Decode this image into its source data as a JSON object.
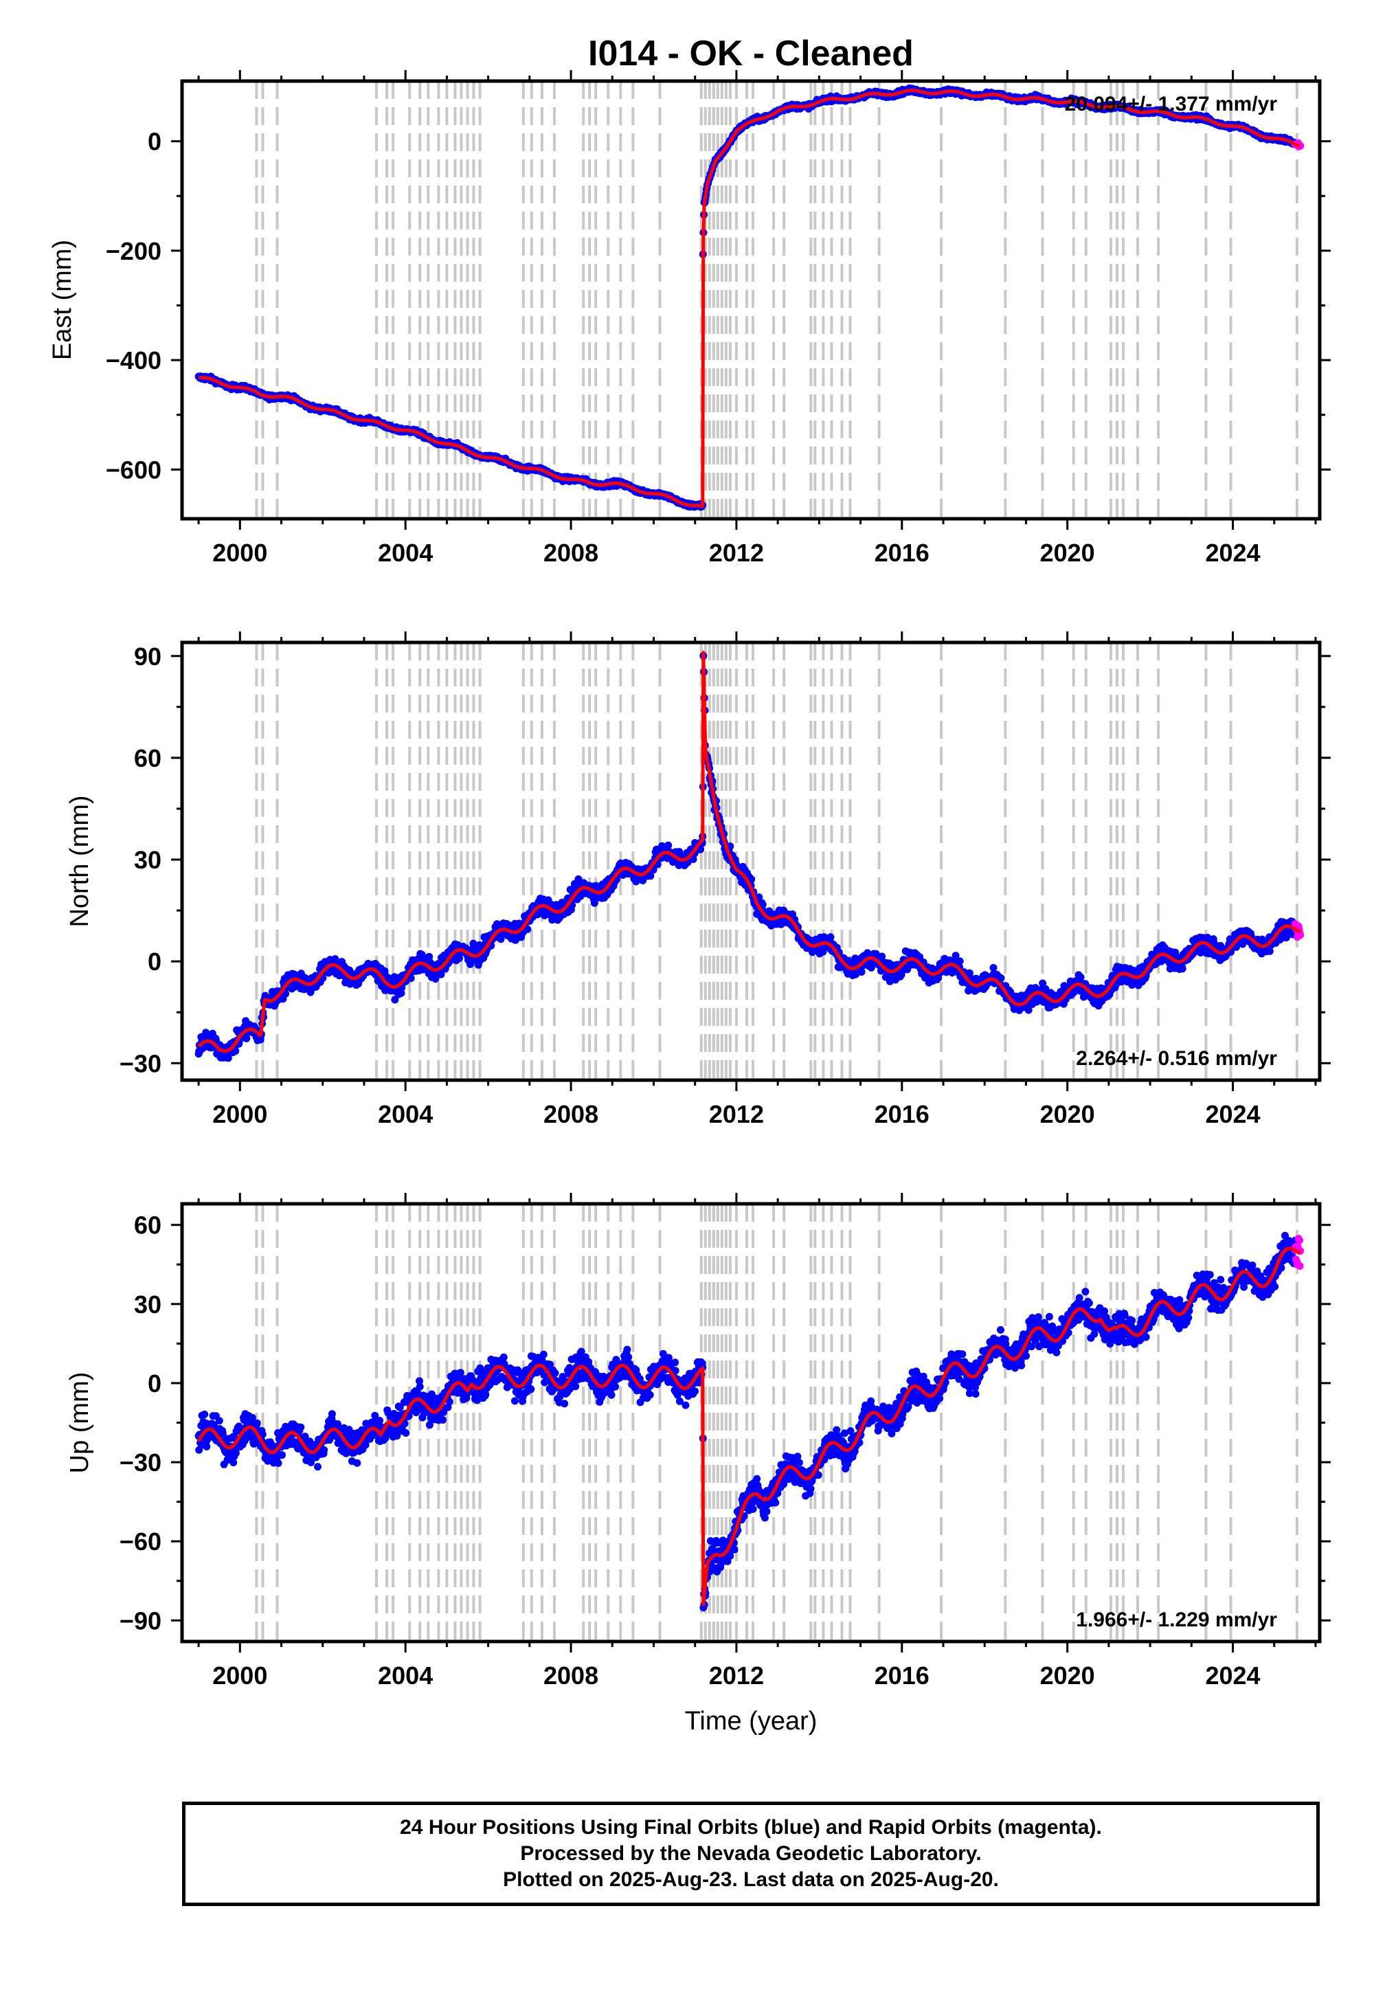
{
  "title": "I014  - OK - Cleaned",
  "caption": {
    "line1": "24 Hour Positions Using Final Orbits (blue) and Rapid Orbits (magenta).",
    "line2": "Processed by the Nevada Geodetic Laboratory.",
    "line3": "Plotted on 2025-Aug-23. Last data on 2025-Aug-20."
  },
  "colors": {
    "final": "#0000ff",
    "rapid": "#ff00ff",
    "model": "#ff0000",
    "steps": "#c8c8c8"
  },
  "chart_data": [
    {
      "type": "scatter",
      "component": "East",
      "ylabel": "East (mm)",
      "xlabel": "",
      "rate_label": "20.094+/- 1.377 mm/yr",
      "xlim": [
        1998.6,
        2026.1
      ],
      "ylim": [
        -690,
        110
      ],
      "yticks": [
        0,
        -200,
        -400,
        -600
      ],
      "xticks": [
        2000,
        2004,
        2008,
        2012,
        2016,
        2020,
        2024
      ],
      "model_knots": [
        [
          1999.0,
          -432
        ],
        [
          2000.0,
          -450
        ],
        [
          2000.5,
          -463
        ],
        [
          2001.0,
          -466
        ],
        [
          2002.0,
          -490
        ],
        [
          2003.0,
          -510
        ],
        [
          2004.0,
          -528
        ],
        [
          2005.0,
          -553
        ],
        [
          2006.0,
          -578
        ],
        [
          2007.0,
          -598
        ],
        [
          2008.0,
          -618
        ],
        [
          2008.5,
          -626
        ],
        [
          2009.0,
          -625
        ],
        [
          2010.0,
          -644
        ],
        [
          2011.19,
          -670
        ],
        [
          2011.19,
          -215
        ],
        [
          2011.22,
          -120
        ],
        [
          2011.3,
          -80
        ],
        [
          2011.5,
          -35
        ],
        [
          2012.0,
          18
        ],
        [
          2012.5,
          40
        ],
        [
          2013.0,
          55
        ],
        [
          2014.0,
          72
        ],
        [
          2015.0,
          82
        ],
        [
          2016.0,
          90
        ],
        [
          2017.0,
          90
        ],
        [
          2018.0,
          84
        ],
        [
          2019.0,
          78
        ],
        [
          2020.0,
          72
        ],
        [
          2021.0,
          63
        ],
        [
          2022.0,
          54
        ],
        [
          2023.0,
          44
        ],
        [
          2024.0,
          28
        ],
        [
          2025.0,
          5
        ],
        [
          2025.6,
          -7
        ]
      ],
      "noise_mm": 4,
      "seasonal_mm": 3
    },
    {
      "type": "scatter",
      "component": "North",
      "ylabel": "North (mm)",
      "xlabel": "",
      "rate_label": "2.264+/- 0.516 mm/yr",
      "xlim": [
        1998.6,
        2026.1
      ],
      "ylim": [
        -35,
        94
      ],
      "yticks": [
        90,
        60,
        30,
        0,
        -30
      ],
      "xticks": [
        2000,
        2004,
        2008,
        2012,
        2016,
        2020,
        2024
      ],
      "model_knots": [
        [
          1999.0,
          -25
        ],
        [
          1999.5,
          -26
        ],
        [
          2000.0,
          -22
        ],
        [
          2000.5,
          -22
        ],
        [
          2000.6,
          -10
        ],
        [
          2001.0,
          -9
        ],
        [
          2002.0,
          -3
        ],
        [
          2003.0,
          -3
        ],
        [
          2003.5,
          -6
        ],
        [
          2004.0,
          -5
        ],
        [
          2004.5,
          -1
        ],
        [
          2005.0,
          0
        ],
        [
          2006.0,
          5
        ],
        [
          2007.0,
          13
        ],
        [
          2008.0,
          18
        ],
        [
          2009.0,
          24
        ],
        [
          2010.0,
          29
        ],
        [
          2011.0,
          33
        ],
        [
          2011.19,
          34
        ],
        [
          2011.2,
          90
        ],
        [
          2011.25,
          60
        ],
        [
          2011.5,
          45
        ],
        [
          2012.0,
          27
        ],
        [
          2012.5,
          17
        ],
        [
          2013.0,
          13
        ],
        [
          2014.0,
          5
        ],
        [
          2014.5,
          1
        ],
        [
          2015.0,
          -1
        ],
        [
          2016.0,
          -1
        ],
        [
          2017.0,
          -2
        ],
        [
          2018.0,
          -6
        ],
        [
          2019.0,
          -12
        ],
        [
          2020.0,
          -9
        ],
        [
          2021.0,
          -8
        ],
        [
          2021.5,
          -4
        ],
        [
          2022.0,
          -1
        ],
        [
          2023.0,
          3
        ],
        [
          2024.0,
          5
        ],
        [
          2025.0,
          7
        ],
        [
          2025.6,
          10
        ]
      ],
      "noise_mm": 2.5,
      "seasonal_mm": 2
    },
    {
      "type": "scatter",
      "component": "Up",
      "ylabel": "Up (mm)",
      "xlabel": "Time (year)",
      "rate_label": "1.966+/- 1.229 mm/yr",
      "xlim": [
        1998.6,
        2026.1
      ],
      "ylim": [
        -98,
        68
      ],
      "yticks": [
        60,
        30,
        0,
        -30,
        -60,
        -90
      ],
      "xticks": [
        2000,
        2004,
        2008,
        2012,
        2016,
        2020,
        2024
      ],
      "model_knots": [
        [
          1999.0,
          -22
        ],
        [
          2000.0,
          -20
        ],
        [
          2001.0,
          -23
        ],
        [
          2002.0,
          -22
        ],
        [
          2003.0,
          -20
        ],
        [
          2003.4,
          -22
        ],
        [
          2003.6,
          -12
        ],
        [
          2004.0,
          -12
        ],
        [
          2005.0,
          -5
        ],
        [
          2005.5,
          -3
        ],
        [
          2005.6,
          2
        ],
        [
          2006.0,
          2
        ],
        [
          2007.0,
          3
        ],
        [
          2008.0,
          2
        ],
        [
          2009.0,
          3
        ],
        [
          2010.0,
          2
        ],
        [
          2011.1,
          2
        ],
        [
          2011.19,
          2
        ],
        [
          2011.2,
          -88
        ],
        [
          2011.3,
          -72
        ],
        [
          2011.5,
          -65
        ],
        [
          2012.0,
          -55
        ],
        [
          2012.5,
          -42
        ],
        [
          2013.0,
          -38
        ],
        [
          2014.0,
          -30
        ],
        [
          2015.0,
          -18
        ],
        [
          2016.0,
          -8
        ],
        [
          2017.0,
          2
        ],
        [
          2018.0,
          8
        ],
        [
          2019.0,
          15
        ],
        [
          2020.0,
          22
        ],
        [
          2020.8,
          28
        ],
        [
          2021.0,
          20
        ],
        [
          2021.2,
          17
        ],
        [
          2022.0,
          25
        ],
        [
          2023.0,
          32
        ],
        [
          2024.0,
          37
        ],
        [
          2025.0,
          42
        ],
        [
          2025.6,
          52
        ]
      ],
      "noise_mm": 5.5,
      "seasonal_mm": 4
    }
  ],
  "step_epochs": [
    2000.4,
    2000.55,
    2000.9,
    2003.3,
    2003.55,
    2003.7,
    2004.1,
    2004.35,
    2004.55,
    2004.8,
    2005.0,
    2005.2,
    2005.35,
    2005.5,
    2005.65,
    2005.8,
    2006.85,
    2007.05,
    2007.3,
    2007.6,
    2008.3,
    2008.45,
    2008.6,
    2008.9,
    2009.2,
    2009.5,
    2010.15,
    2011.15,
    2011.25,
    2011.35,
    2011.45,
    2011.55,
    2011.65,
    2011.75,
    2011.85,
    2012.0,
    2012.25,
    2012.4,
    2012.9,
    2013.15,
    2013.8,
    2013.9,
    2014.1,
    2014.3,
    2014.55,
    2014.75,
    2015.45,
    2016.95,
    2018.5,
    2019.4,
    2020.15,
    2020.45,
    2021.05,
    2021.2,
    2021.35,
    2021.7,
    2022.2,
    2023.35,
    2023.95,
    2025.55
  ]
}
